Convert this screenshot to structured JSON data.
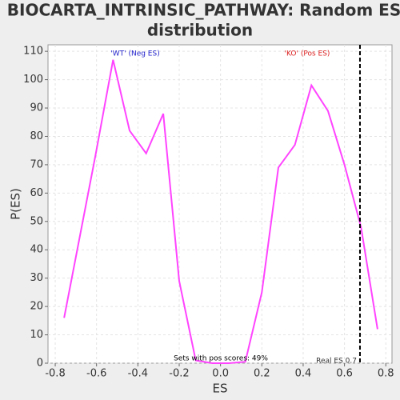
{
  "chart_data": {
    "type": "line",
    "title": [
      "BIOCARTA_INTRINSIC_PATHWAY: Random ES",
      "distribution"
    ],
    "x_label": "ES",
    "y_label": "P(ES)",
    "x": [
      -0.757,
      -0.606,
      -0.52,
      -0.44,
      -0.36,
      -0.277,
      -0.2,
      -0.12,
      -0.04,
      0.04,
      0.12,
      0.2,
      0.28,
      0.36,
      0.44,
      0.52,
      0.6,
      0.68,
      0.76
    ],
    "series": [
      {
        "color": "#ff44ff",
        "values": [
          16,
          73,
          107,
          82,
          74,
          88,
          29,
          1,
          0,
          0,
          0.5,
          25,
          69,
          77,
          98,
          89,
          70,
          48,
          12
        ]
      }
    ],
    "xlim": [
      -0.835,
      0.83
    ],
    "ylim": [
      0,
      112.3
    ],
    "xticks": [
      -0.8,
      -0.6,
      -0.4,
      -0.2,
      {
        "value": 0,
        "label": "0.0"
      },
      0.2,
      0.4,
      0.6,
      0.8
    ],
    "yticks": [
      0,
      10,
      20,
      30,
      40,
      50,
      60,
      70,
      80,
      90,
      100,
      110
    ],
    "grid": true,
    "real_es": 0.675,
    "real_es_label": "Real ES 0.7",
    "neg_label": "'WT' (Neg ES)",
    "neg_color": "#2222cc",
    "pos_label": "'KO' (Pos ES)",
    "pos_color": "#dd2222",
    "pos_scores_label": "Sets with pos scores: 49%"
  }
}
